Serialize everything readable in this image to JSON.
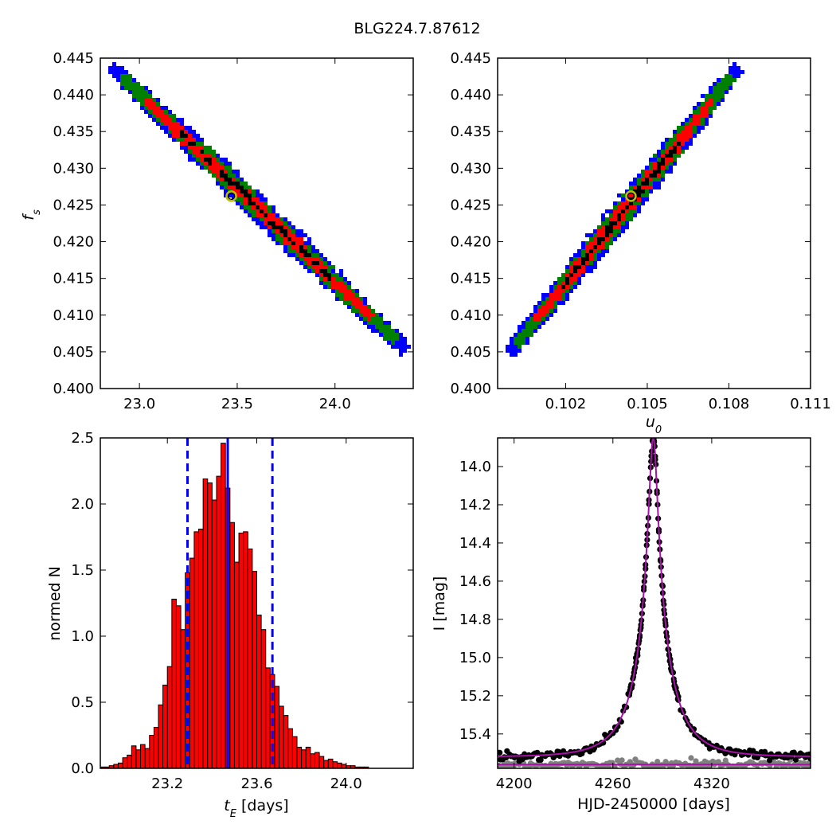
{
  "figure": {
    "title": "BLG224.7.87612"
  },
  "colors": {
    "blue": "#0000ff",
    "green": "#008000",
    "red": "#ff0000",
    "black": "#000000",
    "marker_edge": "#bfbf00",
    "hist_fill": "#ff0000",
    "hist_line": "#0000ff",
    "model": "#aa11aa",
    "data_main": "#000000",
    "data_resid": "#808080"
  },
  "chart_data": [
    {
      "id": "fs_vs_tE",
      "type": "heatmap",
      "title": "",
      "xlabel": "",
      "ylabel": "f_s",
      "xlim": [
        22.8,
        24.4
      ],
      "ylim": [
        0.4,
        0.445
      ],
      "xticks": [
        "23.0",
        "23.5",
        "24.0"
      ],
      "yticks": [
        "0.400",
        "0.405",
        "0.410",
        "0.415",
        "0.420",
        "0.425",
        "0.430",
        "0.435",
        "0.440",
        "0.445"
      ],
      "correlation": "negative",
      "ridge": {
        "x_start": 22.87,
        "y_start": 0.4435,
        "x_end": 24.35,
        "y_end": 0.4055
      },
      "contour_levels": [
        "blue",
        "green",
        "red",
        "black"
      ],
      "best_fit": {
        "x": 23.47,
        "y": 0.4262
      }
    },
    {
      "id": "fs_vs_u0",
      "type": "heatmap",
      "title": "",
      "xlabel": "u_0",
      "ylabel": "",
      "xlim": [
        0.0995,
        0.111
      ],
      "ylim": [
        0.4,
        0.445
      ],
      "xticks": [
        "0.102",
        "0.105",
        "0.108",
        "0.111"
      ],
      "yticks": [
        "0.400",
        "0.405",
        "0.410",
        "0.415",
        "0.420",
        "0.425",
        "0.430",
        "0.435",
        "0.440",
        "0.445"
      ],
      "correlation": "positive",
      "ridge": {
        "x_start": 0.1,
        "y_start": 0.405,
        "x_end": 0.1083,
        "y_end": 0.4435
      },
      "contour_levels": [
        "blue",
        "green",
        "red",
        "black"
      ],
      "best_fit": {
        "x": 0.1044,
        "y": 0.4262
      }
    },
    {
      "id": "tE_histogram",
      "type": "bar",
      "title": "",
      "xlabel": "t_E [days]",
      "ylabel": "normed N",
      "xlim": [
        22.9,
        24.3
      ],
      "ylim": [
        0,
        2.5
      ],
      "xticks": [
        "23.2",
        "23.6",
        "24.0"
      ],
      "yticks": [
        "0.0",
        "0.5",
        "1.0",
        "1.5",
        "2.0",
        "2.5"
      ],
      "bin_start": 22.9,
      "bin_width": 0.02,
      "values": [
        0.01,
        0.01,
        0.02,
        0.03,
        0.04,
        0.08,
        0.1,
        0.17,
        0.14,
        0.18,
        0.15,
        0.25,
        0.31,
        0.48,
        0.63,
        0.77,
        1.28,
        1.23,
        1.05,
        1.48,
        1.59,
        1.79,
        1.81,
        2.19,
        2.16,
        2.03,
        2.21,
        2.46,
        2.12,
        1.86,
        1.56,
        1.78,
        1.79,
        1.66,
        1.49,
        1.16,
        1.05,
        0.76,
        0.71,
        0.62,
        0.47,
        0.4,
        0.3,
        0.24,
        0.16,
        0.14,
        0.16,
        0.11,
        0.12,
        0.09,
        0.06,
        0.07,
        0.05,
        0.04,
        0.03,
        0.02,
        0.02,
        0.01,
        0.01,
        0.01,
        0.0,
        0.0,
        0.0,
        0.0,
        0.0,
        0.0,
        0.0,
        0.0,
        0.0,
        0.0
      ],
      "median_line": 23.47,
      "interval_lines": [
        23.29,
        23.67
      ]
    },
    {
      "id": "light_curve",
      "type": "scatter",
      "title": "",
      "xlabel": "HJD-2450000 [days]",
      "ylabel": "I [mag]",
      "xlim": [
        4190,
        4380
      ],
      "ylim": [
        15.58,
        13.85
      ],
      "y_inverted": true,
      "xticks": [
        "4200",
        "4260",
        "4320"
      ],
      "yticks": [
        "14.0",
        "14.2",
        "14.4",
        "14.6",
        "14.8",
        "15.0",
        "15.2",
        "15.4"
      ],
      "model": {
        "t0": 4284.5,
        "tE": 23.47,
        "u0": 0.1044,
        "fs": 0.4262,
        "I_base": 15.52
      },
      "residual_offset_mag": 15.56
    }
  ]
}
